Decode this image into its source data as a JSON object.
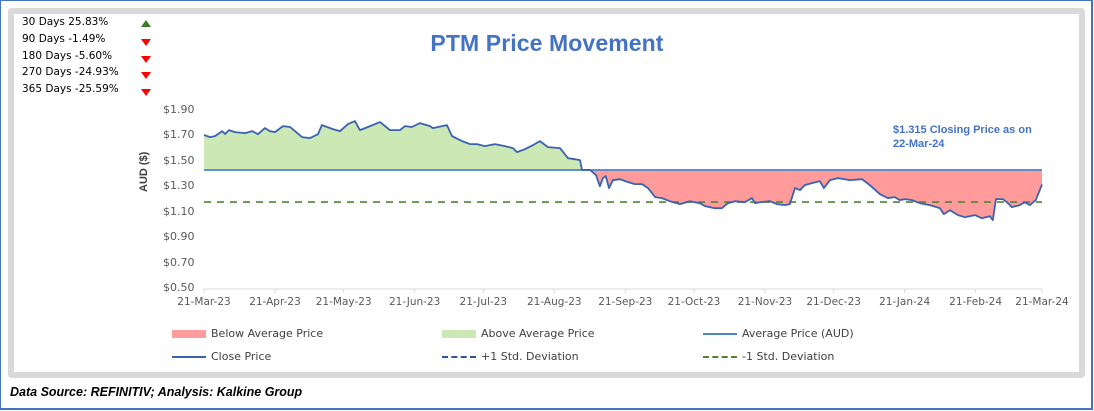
{
  "performance": [
    {
      "label": "30 Days 25.83%",
      "direction": "up"
    },
    {
      "label": "90 Days -1.49%",
      "direction": "down"
    },
    {
      "label": "180 Days -5.60%",
      "direction": "down"
    },
    {
      "label": "270 Days -24.93%",
      "direction": "down"
    },
    {
      "label": "365 Days -25.59%",
      "direction": "down"
    }
  ],
  "colors": {
    "title": "#4472c4",
    "close": "#3a62b0",
    "average": "#4a86c8",
    "above_fill": "#cce8b5",
    "below_fill": "#ff9b9b",
    "minus_std": "#548235",
    "plus_std": "#2f5597",
    "up": "#3a7d22",
    "down": "#ff0000"
  },
  "annotation": {
    "line1": "$1.315 Closing Price as on",
    "line2": "22-Mar-24"
  },
  "source": "Data Source: REFINITIV; Analysis: Kalkine Group",
  "chart_data": {
    "type": "area",
    "title": "PTM Price Movement",
    "xlabel": "",
    "ylabel": "AUD ($)",
    "ylim": [
      0.5,
      1.9
    ],
    "yticks": [
      "$1.90",
      "$1.70",
      "$1.50",
      "$1.30",
      "$1.10",
      "$0.90",
      "$0.70",
      "$0.50"
    ],
    "ytick_values": [
      1.9,
      1.7,
      1.5,
      1.3,
      1.1,
      0.9,
      0.7,
      0.5
    ],
    "xticks": [
      "21-Mar-23",
      "21-Apr-23",
      "21-May-23",
      "21-Jun-23",
      "21-Jul-23",
      "21-Aug-23",
      "21-Sep-23",
      "21-Oct-23",
      "21-Nov-23",
      "21-Dec-23",
      "21-Jan-24",
      "21-Feb-24",
      "21-Mar-24"
    ],
    "xtick_days": [
      0,
      31,
      61,
      92,
      122,
      153,
      184,
      214,
      245,
      275,
      306,
      337,
      366
    ],
    "xlim_days": [
      0,
      366
    ],
    "average_price": 1.428,
    "minus_1_std": 1.176,
    "legend": [
      {
        "label": "Below Average Price",
        "kind": "fill-below"
      },
      {
        "label": "Above Average Price",
        "kind": "fill-above"
      },
      {
        "label": "Average Price (AUD)",
        "kind": "average-line"
      },
      {
        "label": "Close Price",
        "kind": "close-line"
      },
      {
        "label": "+1 Std. Deviation",
        "kind": "plus-std"
      },
      {
        "label": "-1 Std. Deviation",
        "kind": "minus-std"
      }
    ],
    "legend_position": "bottom",
    "series": [
      {
        "name": "Close Price",
        "points": [
          [
            0,
            1.703
          ],
          [
            2.6,
            1.687
          ],
          [
            4.8,
            1.695
          ],
          [
            7.9,
            1.734
          ],
          [
            9.2,
            1.711
          ],
          [
            10.9,
            1.742
          ],
          [
            13.5,
            1.726
          ],
          [
            17.9,
            1.718
          ],
          [
            21,
            1.734
          ],
          [
            23.6,
            1.71
          ],
          [
            26.6,
            1.758
          ],
          [
            28.8,
            1.734
          ],
          [
            31,
            1.726
          ],
          [
            34.5,
            1.773
          ],
          [
            37.6,
            1.766
          ],
          [
            42.8,
            1.687
          ],
          [
            46.3,
            1.679
          ],
          [
            49.8,
            1.71
          ],
          [
            51.5,
            1.781
          ],
          [
            56.3,
            1.75
          ],
          [
            59.4,
            1.734
          ],
          [
            62.9,
            1.789
          ],
          [
            65.9,
            1.813
          ],
          [
            68.1,
            1.742
          ],
          [
            71.6,
            1.766
          ],
          [
            76.9,
            1.805
          ],
          [
            81.2,
            1.742
          ],
          [
            85.6,
            1.742
          ],
          [
            87.8,
            1.773
          ],
          [
            90.8,
            1.766
          ],
          [
            94.3,
            1.797
          ],
          [
            98.7,
            1.773
          ],
          [
            100,
            1.758
          ],
          [
            106.1,
            1.781
          ],
          [
            108.3,
            1.695
          ],
          [
            110.9,
            1.671
          ],
          [
            112.7,
            1.655
          ],
          [
            116.2,
            1.632
          ],
          [
            119.2,
            1.632
          ],
          [
            122.7,
            1.616
          ],
          [
            127.1,
            1.632
          ],
          [
            131.4,
            1.616
          ],
          [
            134.9,
            1.6
          ],
          [
            136.7,
            1.569
          ],
          [
            140.2,
            1.592
          ],
          [
            143.7,
            1.624
          ],
          [
            146.7,
            1.655
          ],
          [
            150.2,
            1.608
          ],
          [
            155.5,
            1.6
          ],
          [
            159,
            1.521
          ],
          [
            162,
            1.513
          ],
          [
            164.2,
            1.506
          ],
          [
            165.1,
            1.428
          ],
          [
            168.6,
            1.428
          ],
          [
            171.2,
            1.388
          ],
          [
            172.9,
            1.301
          ],
          [
            174.2,
            1.364
          ],
          [
            175.5,
            1.38
          ],
          [
            176.9,
            1.286
          ],
          [
            178.6,
            1.348
          ],
          [
            181.7,
            1.356
          ],
          [
            185.2,
            1.333
          ],
          [
            188.2,
            1.317
          ],
          [
            191.3,
            1.317
          ],
          [
            193.9,
            1.286
          ],
          [
            197,
            1.215
          ],
          [
            200,
            1.207
          ],
          [
            203.5,
            1.183
          ],
          [
            207.9,
            1.16
          ],
          [
            212.2,
            1.183
          ],
          [
            216.6,
            1.167
          ],
          [
            218.8,
            1.144
          ],
          [
            223.1,
            1.128
          ],
          [
            226.2,
            1.128
          ],
          [
            228.8,
            1.167
          ],
          [
            231.9,
            1.183
          ],
          [
            236.2,
            1.175
          ],
          [
            239.3,
            1.207
          ],
          [
            240.6,
            1.167
          ],
          [
            242.8,
            1.175
          ],
          [
            247.2,
            1.183
          ],
          [
            250.2,
            1.16
          ],
          [
            253.7,
            1.152
          ],
          [
            255.9,
            1.16
          ],
          [
            258.1,
            1.286
          ],
          [
            260.3,
            1.27
          ],
          [
            262.4,
            1.309
          ],
          [
            265.5,
            1.325
          ],
          [
            269,
            1.341
          ],
          [
            270.7,
            1.286
          ],
          [
            273.4,
            1.349
          ],
          [
            276.9,
            1.364
          ],
          [
            282.1,
            1.349
          ],
          [
            287.4,
            1.356
          ],
          [
            289.1,
            1.333
          ],
          [
            290.8,
            1.309
          ],
          [
            295.2,
            1.238
          ],
          [
            298.7,
            1.207
          ],
          [
            301.7,
            1.215
          ],
          [
            303.9,
            1.191
          ],
          [
            306.1,
            1.199
          ],
          [
            309.2,
            1.191
          ],
          [
            312.7,
            1.167
          ],
          [
            317,
            1.152
          ],
          [
            321.4,
            1.128
          ],
          [
            323.1,
            1.081
          ],
          [
            325.8,
            1.112
          ],
          [
            329.3,
            1.073
          ],
          [
            332.3,
            1.057
          ],
          [
            336.7,
            1.073
          ],
          [
            339.7,
            1.049
          ],
          [
            343.2,
            1.065
          ],
          [
            344.5,
            1.034
          ],
          [
            345.9,
            1.199
          ],
          [
            348.9,
            1.199
          ],
          [
            350.7,
            1.175
          ],
          [
            352.8,
            1.136
          ],
          [
            356.3,
            1.152
          ],
          [
            358.5,
            1.175
          ],
          [
            360.7,
            1.152
          ],
          [
            363.3,
            1.191
          ],
          [
            366,
            1.315
          ]
        ]
      }
    ]
  }
}
